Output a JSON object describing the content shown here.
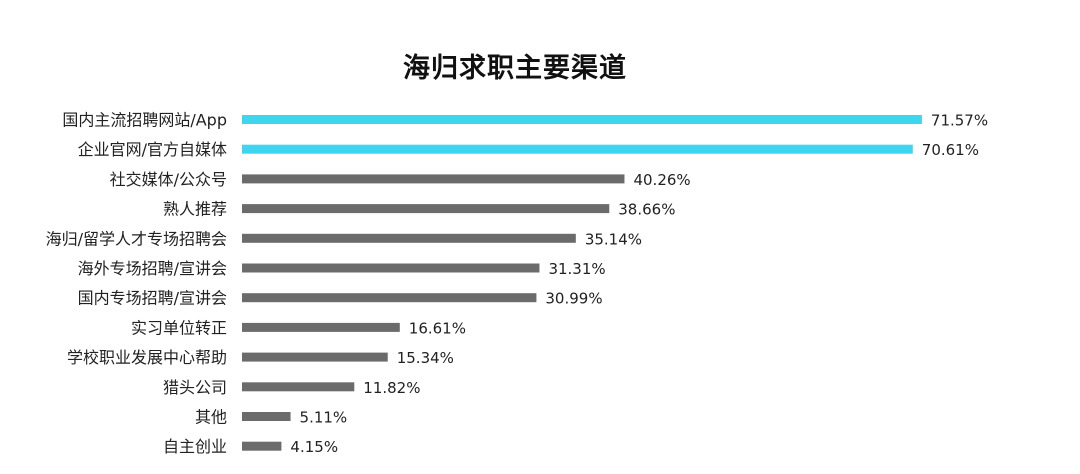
{
  "chart_data": {
    "type": "bar",
    "orientation": "horizontal",
    "title": "海归求职主要渠道",
    "categories": [
      "国内主流招聘网站/App",
      "企业官网/官方自媒体",
      "社交媒体/公众号",
      "熟人推荐",
      "海归/留学人才专场招聘会",
      "海外专场招聘/宣讲会",
      "国内专场招聘/宣讲会",
      "实习单位转正",
      "学校职业发展中心帮助",
      "猎头公司",
      "其他",
      "自主创业"
    ],
    "values": [
      71.57,
      70.61,
      40.26,
      38.66,
      35.14,
      31.31,
      30.99,
      16.61,
      15.34,
      11.82,
      5.11,
      4.15
    ],
    "value_labels": [
      "71.57%",
      "70.61%",
      "40.26%",
      "38.66%",
      "35.14%",
      "31.31%",
      "30.99%",
      "16.61%",
      "15.34%",
      "11.82%",
      "5.11%",
      "4.15%"
    ],
    "highlight_count": 2,
    "colors": {
      "highlight": "#3ed6ee",
      "default": "#6b6b6b"
    },
    "xlim": [
      0,
      75
    ],
    "grid": false,
    "legend": "none"
  }
}
